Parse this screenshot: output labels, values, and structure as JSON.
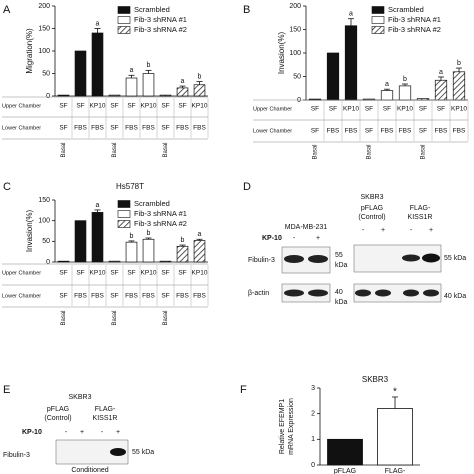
{
  "chart_data": [
    {
      "type": "grouped_bar",
      "panel": "A",
      "ylabel": "Migration(%)",
      "ylim": [
        0,
        200
      ],
      "yticks": [
        0,
        50,
        100,
        150,
        200
      ],
      "row_titles": [
        "Upper Chamber",
        "Lower Chamber"
      ],
      "upper_chamber": [
        "SF",
        "SF",
        "KP10",
        "SF",
        "SF",
        "KP10",
        "SF",
        "SF",
        "KP10"
      ],
      "lower_chamber": [
        "SF",
        "FBS",
        "FBS",
        "SF",
        "FBS",
        "FBS",
        "SF",
        "FBS",
        "FBS"
      ],
      "group_labels": [
        "Basal",
        null,
        null,
        "Basal",
        null,
        null,
        "Basal",
        null,
        null
      ],
      "series": [
        {
          "name": "Scrambled",
          "color": "#111111",
          "hatch": false,
          "values": [
            2,
            100,
            140,
            null,
            null,
            null,
            null,
            null,
            null
          ],
          "errors": [
            null,
            null,
            10,
            null,
            null,
            null,
            null,
            null,
            null
          ],
          "labels": [
            null,
            null,
            "a",
            null,
            null,
            null,
            null,
            null,
            null
          ]
        },
        {
          "name": "Fib-3 shRNA #1",
          "color": "#ffffff",
          "hatch": false,
          "values": [
            null,
            null,
            null,
            2,
            40,
            50,
            null,
            null,
            null
          ],
          "errors": [
            null,
            null,
            null,
            null,
            6,
            7,
            null,
            null,
            null
          ],
          "labels": [
            null,
            null,
            null,
            null,
            "a",
            "b",
            null,
            null,
            null
          ]
        },
        {
          "name": "Fib-3 shRNA #2",
          "color": "#ffffff",
          "hatch": true,
          "values": [
            null,
            null,
            null,
            null,
            null,
            null,
            2,
            18,
            25
          ],
          "errors": [
            null,
            null,
            null,
            null,
            null,
            null,
            null,
            4,
            7
          ],
          "labels": [
            null,
            null,
            null,
            null,
            null,
            null,
            null,
            "a",
            "b"
          ]
        }
      ]
    },
    {
      "type": "grouped_bar",
      "panel": "B",
      "ylabel": "Invasion(%)",
      "ylim": [
        0,
        200
      ],
      "yticks": [
        0,
        50,
        100,
        150,
        200
      ],
      "row_titles": [
        "Upper Chamber",
        "Lower Chamber"
      ],
      "upper_chamber": [
        "SF",
        "SF",
        "KP10",
        "SF",
        "SF",
        "KP10",
        "SF",
        "SF",
        "KP10"
      ],
      "lower_chamber": [
        "SF",
        "FBS",
        "FBS",
        "SF",
        "FBS",
        "FBS",
        "SF",
        "FBS",
        "FBS"
      ],
      "group_labels": [
        "Basal",
        null,
        null,
        "Basal",
        null,
        null,
        "Basal",
        null,
        null
      ],
      "series": [
        {
          "name": "Scrambled",
          "color": "#111111",
          "hatch": false,
          "values": [
            2,
            100,
            158,
            null,
            null,
            null,
            null,
            null,
            null
          ],
          "errors": [
            null,
            null,
            15,
            null,
            null,
            null,
            null,
            null,
            null
          ],
          "labels": [
            null,
            null,
            "a",
            null,
            null,
            null,
            null,
            null,
            null
          ]
        },
        {
          "name": "Fib-3 shRNA #1",
          "color": "#ffffff",
          "hatch": false,
          "values": [
            null,
            null,
            null,
            2,
            20,
            30,
            null,
            null,
            null
          ],
          "errors": [
            null,
            null,
            null,
            null,
            3,
            4,
            null,
            null,
            null
          ],
          "labels": [
            null,
            null,
            null,
            null,
            "a",
            "b",
            null,
            null,
            null
          ]
        },
        {
          "name": "Fib-3 shRNA #2",
          "color": "#ffffff",
          "hatch": true,
          "values": [
            null,
            null,
            null,
            null,
            null,
            null,
            3,
            42,
            60
          ],
          "errors": [
            null,
            null,
            null,
            null,
            null,
            null,
            null,
            7,
            8
          ],
          "labels": [
            null,
            null,
            null,
            null,
            null,
            null,
            null,
            "a",
            "b"
          ]
        }
      ]
    },
    {
      "type": "grouped_bar",
      "panel": "C",
      "title": "Hs578T",
      "ylabel": "Invasion(%)",
      "ylim": [
        0,
        150
      ],
      "yticks": [
        0,
        50,
        100,
        150
      ],
      "row_titles": [
        "Upper Chamber",
        "Lower Chamber"
      ],
      "upper_chamber": [
        "SF",
        "SF",
        "KP10",
        "SF",
        "SF",
        "KP10",
        "SF",
        "SF",
        "KP10"
      ],
      "lower_chamber": [
        "SF",
        "FBS",
        "FBS",
        "SF",
        "FBS",
        "FBS",
        "SF",
        "FBS",
        "FBS"
      ],
      "group_labels": [
        "Basal",
        null,
        null,
        "Basal",
        null,
        null,
        "Basal",
        null,
        null
      ],
      "series": [
        {
          "name": "Scrambled",
          "color": "#111111",
          "hatch": false,
          "values": [
            2,
            100,
            120,
            null,
            null,
            null,
            null,
            null,
            null
          ],
          "errors": [
            null,
            null,
            6,
            null,
            null,
            null,
            null,
            null,
            null
          ],
          "labels": [
            null,
            null,
            "a",
            null,
            null,
            null,
            null,
            null,
            null
          ]
        },
        {
          "name": "Fib-3 shRNA #1",
          "color": "#ffffff",
          "hatch": false,
          "values": [
            null,
            null,
            null,
            2,
            48,
            55,
            null,
            null,
            null
          ],
          "errors": [
            null,
            null,
            null,
            null,
            3,
            3,
            null,
            null,
            null
          ],
          "labels": [
            null,
            null,
            null,
            null,
            "b",
            "b",
            null,
            null,
            null
          ]
        },
        {
          "name": "Fib-3 shRNA #2",
          "color": "#ffffff",
          "hatch": true,
          "values": [
            null,
            null,
            null,
            null,
            null,
            null,
            2,
            38,
            52
          ],
          "errors": [
            null,
            null,
            null,
            null,
            null,
            null,
            null,
            3,
            3
          ],
          "labels": [
            null,
            null,
            null,
            null,
            null,
            null,
            null,
            "b",
            "a"
          ]
        }
      ]
    },
    {
      "type": "bar",
      "panel": "F",
      "title": "SKBR3",
      "ylabel": [
        "Relative EFEMP1",
        "mRNA Expression"
      ],
      "ylim": [
        0,
        3
      ],
      "yticks": [
        0,
        1,
        2,
        3
      ],
      "categories": [
        "pFLAG",
        "FLAG-"
      ],
      "values": [
        1,
        2.2
      ],
      "errors": [
        null,
        0.45
      ],
      "labels": [
        null,
        "*"
      ],
      "colors": [
        "#111111",
        "#ffffff"
      ]
    }
  ],
  "blots": [
    {
      "panel": "D",
      "left": {
        "cell_line": "MDA-MB-231",
        "treatment": "KP-10",
        "signs": [
          "-",
          "+"
        ],
        "rows": [
          "Fibulin-3",
          "β-actin"
        ],
        "markers": [
          "55",
          "40"
        ],
        "unit": "kDa"
      },
      "right": {
        "cell_line": "SKBR3",
        "groups": [
          "pFLAG",
          "(Control)",
          "FLAG-",
          "KISS1R"
        ],
        "signs": [
          "-",
          "+",
          "-",
          "+"
        ],
        "markers": [
          "55 kDa",
          "40 kDa"
        ]
      }
    },
    {
      "panel": "E",
      "cell_line": "SKBR3",
      "groups": [
        "pFLAG",
        "(Control)",
        "FLAG-",
        "KISS1R"
      ],
      "treatment": "KP-10",
      "signs": [
        "-",
        "+",
        "-",
        "+"
      ],
      "row": "Fibulin-3",
      "marker": "55 kDa",
      "note": "Conditioned"
    }
  ]
}
